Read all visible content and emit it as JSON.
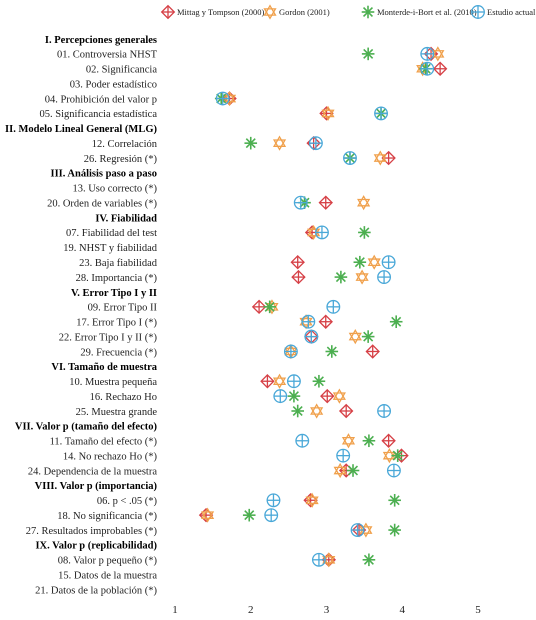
{
  "chart_data": {
    "type": "scatter",
    "xlim": [
      1,
      5
    ],
    "xticks": [
      1,
      2,
      3,
      4,
      5
    ],
    "legend_position": "top",
    "series": [
      {
        "name": "Mittag y Tompson (2000)",
        "color": "#d64046",
        "marker": "diamond"
      },
      {
        "name": "Gordon (2001)",
        "color": "#f0a04b",
        "marker": "hexagram"
      },
      {
        "name": "Monterde-i-Bort et al. (2010)",
        "color": "#4caf50",
        "marker": "asterisk"
      },
      {
        "name": "Estudio actual",
        "color": "#4aa8d8",
        "marker": "circle-cross"
      }
    ],
    "rows": [
      {
        "label": "I. Percepciones generales",
        "header": true,
        "values": [
          null,
          null,
          null,
          null
        ]
      },
      {
        "label": "01. Controversia NHST",
        "header": false,
        "values": [
          4.38,
          4.47,
          3.55,
          4.33
        ]
      },
      {
        "label": "02. Significancia",
        "header": false,
        "values": [
          4.5,
          4.27,
          4.31,
          4.33
        ]
      },
      {
        "label": "03. Poder estadístico",
        "header": false,
        "values": [
          null,
          null,
          null,
          null
        ]
      },
      {
        "label": "04. Prohibición del valor p",
        "header": false,
        "values": [
          1.72,
          1.72,
          1.61,
          1.63
        ]
      },
      {
        "label": "05. Significancia estadística",
        "header": false,
        "values": [
          3.0,
          3.02,
          3.72,
          3.72
        ]
      },
      {
        "label": "II. Modelo Lineal General (MLG)",
        "header": true,
        "values": [
          null,
          null,
          null,
          null
        ]
      },
      {
        "label": "12. Correlación",
        "header": false,
        "values": [
          2.83,
          2.38,
          2.0,
          2.86
        ]
      },
      {
        "label": "26. Regresión (*)",
        "header": false,
        "values": [
          3.82,
          3.71,
          3.31,
          3.31
        ]
      },
      {
        "label": "III. Análisis paso a paso",
        "header": true,
        "values": [
          null,
          null,
          null,
          null
        ]
      },
      {
        "label": "13. Uso correcto (*)",
        "header": false,
        "values": [
          null,
          null,
          null,
          null
        ]
      },
      {
        "label": "20. Orden de variables (*)",
        "header": false,
        "values": [
          2.99,
          3.49,
          2.71,
          2.66
        ]
      },
      {
        "label": "IV. Fiabilidad",
        "header": true,
        "values": [
          null,
          null,
          null,
          null
        ]
      },
      {
        "label": "07. Fiabilidad del test",
        "header": false,
        "values": [
          2.81,
          2.83,
          3.5,
          2.94
        ]
      },
      {
        "label": "19. NHST y fiabilidad",
        "header": false,
        "values": [
          null,
          null,
          null,
          null
        ]
      },
      {
        "label": "23. Baja fiabilidad",
        "header": false,
        "values": [
          2.62,
          3.63,
          3.44,
          3.82
        ]
      },
      {
        "label": "28. Importancia (*)",
        "header": false,
        "values": [
          2.63,
          3.47,
          3.19,
          3.76
        ]
      },
      {
        "label": "V. Error Tipo I y II",
        "header": true,
        "values": [
          null,
          null,
          null,
          null
        ]
      },
      {
        "label": "09. Error Tipo II",
        "header": false,
        "values": [
          2.11,
          2.28,
          2.25,
          3.09
        ]
      },
      {
        "label": "17. Error Tipo I (*)",
        "header": false,
        "values": [
          2.99,
          2.73,
          3.92,
          2.76
        ]
      },
      {
        "label": "22. Error Tipo I y II (*)",
        "header": false,
        "values": [
          2.8,
          3.38,
          3.55,
          2.8
        ]
      },
      {
        "label": "29. Frecuencia (*)",
        "header": false,
        "values": [
          3.61,
          2.53,
          3.07,
          2.53
        ]
      },
      {
        "label": "VI. Tamaño de muestra",
        "header": true,
        "values": [
          null,
          null,
          null,
          null
        ]
      },
      {
        "label": "10. Muestra pequeña",
        "header": false,
        "values": [
          2.22,
          2.38,
          2.9,
          2.57
        ]
      },
      {
        "label": "16. Rechazo Ho",
        "header": false,
        "values": [
          3.01,
          3.17,
          2.57,
          2.39
        ]
      },
      {
        "label": "25. Muestra grande",
        "header": false,
        "values": [
          3.26,
          2.87,
          2.62,
          3.76
        ]
      },
      {
        "label": "VII. Valor p (tamaño del efecto)",
        "header": true,
        "values": [
          null,
          null,
          null,
          null
        ]
      },
      {
        "label": "11. Tamaño del efecto (*)",
        "header": false,
        "values": [
          3.82,
          3.29,
          3.56,
          2.68
        ]
      },
      {
        "label": "14. No rechazo Ho (*)",
        "header": false,
        "values": [
          3.99,
          3.83,
          3.94,
          3.22
        ]
      },
      {
        "label": "24. Dependencia de la muestra",
        "header": false,
        "values": [
          3.26,
          3.18,
          3.35,
          3.89
        ]
      },
      {
        "label": "VIII. Valor p (importancia)",
        "header": true,
        "values": [
          null,
          null,
          null,
          null
        ]
      },
      {
        "label": "06. p < .05 (*)",
        "header": false,
        "values": [
          2.79,
          2.81,
          3.9,
          2.3
        ]
      },
      {
        "label": "18. No significancia (*)",
        "header": false,
        "values": [
          1.41,
          1.43,
          1.98,
          2.27
        ]
      },
      {
        "label": "27. Resultados improbables (*)",
        "header": false,
        "values": [
          3.43,
          3.52,
          3.9,
          3.41
        ]
      },
      {
        "label": "IX. Valor p (replicabilidad)",
        "header": true,
        "values": [
          null,
          null,
          null,
          null
        ]
      },
      {
        "label": "08. Valor p pequeño (*)",
        "header": false,
        "values": [
          3.03,
          3.03,
          3.56,
          2.9
        ]
      },
      {
        "label": "15. Datos de la muestra",
        "header": false,
        "values": [
          null,
          null,
          null,
          null
        ]
      },
      {
        "label": "21. Datos de la población (*)",
        "header": false,
        "values": [
          null,
          null,
          null,
          null
        ]
      }
    ]
  }
}
